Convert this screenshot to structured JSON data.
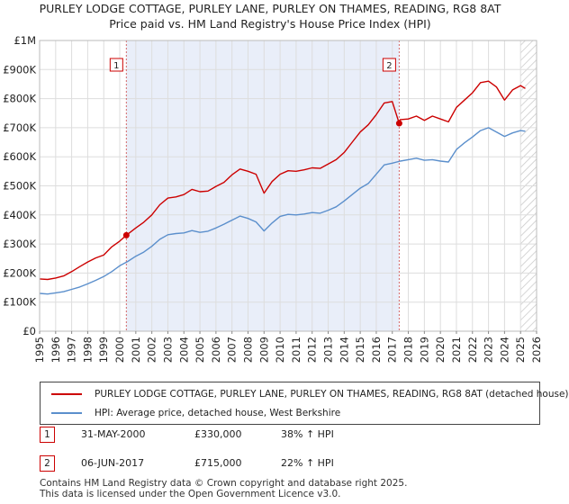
{
  "chart_data": {
    "type": "line",
    "title": "PURLEY LODGE COTTAGE, PURLEY LANE, PURLEY ON THAMES, READING, RG8 8AT",
    "subtitle": "Price paid vs. HM Land Registry's House Price Index (HPI)",
    "xlabel": "",
    "ylabel": "",
    "xlim": [
      1995,
      2026
    ],
    "ylim": [
      0,
      1000000
    ],
    "x_ticks": [
      "1995",
      "1996",
      "1997",
      "1998",
      "1999",
      "2000",
      "2001",
      "2002",
      "2003",
      "2004",
      "2005",
      "2006",
      "2007",
      "2008",
      "2009",
      "2010",
      "2011",
      "2012",
      "2013",
      "2014",
      "2015",
      "2016",
      "2017",
      "2018",
      "2019",
      "2020",
      "2021",
      "2022",
      "2023",
      "2024",
      "2025",
      "2026"
    ],
    "y_ticks": [
      {
        "value": 0,
        "label": "£0"
      },
      {
        "value": 100000,
        "label": "£100K"
      },
      {
        "value": 200000,
        "label": "£200K"
      },
      {
        "value": 300000,
        "label": "£300K"
      },
      {
        "value": 400000,
        "label": "£400K"
      },
      {
        "value": 500000,
        "label": "£500K"
      },
      {
        "value": 600000,
        "label": "£600K"
      },
      {
        "value": 700000,
        "label": "£700K"
      },
      {
        "value": 800000,
        "label": "£800K"
      },
      {
        "value": 900000,
        "label": "£900K"
      },
      {
        "value": 1000000,
        "label": "£1M"
      }
    ],
    "shaded_period": [
      2000.41,
      2017.43
    ],
    "future_hatch_from": 2025.0,
    "series": [
      {
        "name": "PURLEY LODGE COTTAGE, PURLEY LANE, PURLEY ON THAMES, READING, RG8 8AT (detached house)",
        "color": "#cc0000",
        "x": [
          1995.0,
          1995.5,
          1996.0,
          1996.5,
          1997.0,
          1997.5,
          1998.0,
          1998.5,
          1999.0,
          1999.5,
          2000.0,
          2000.41,
          2001.0,
          2001.5,
          2002.0,
          2002.5,
          2003.0,
          2003.5,
          2004.0,
          2004.5,
          2005.0,
          2005.5,
          2006.0,
          2006.5,
          2007.0,
          2007.5,
          2008.0,
          2008.5,
          2009.0,
          2009.5,
          2010.0,
          2010.5,
          2011.0,
          2011.5,
          2012.0,
          2012.5,
          2013.0,
          2013.5,
          2014.0,
          2014.5,
          2015.0,
          2015.5,
          2016.0,
          2016.5,
          2017.0,
          2017.43,
          2017.5,
          2018.0,
          2018.5,
          2019.0,
          2019.5,
          2020.0,
          2020.5,
          2021.0,
          2021.5,
          2022.0,
          2022.5,
          2023.0,
          2023.5,
          2024.0,
          2024.5,
          2025.0,
          2025.3
        ],
        "values": [
          180000,
          178000,
          183000,
          190000,
          205000,
          222000,
          238000,
          252000,
          262000,
          290000,
          310000,
          330000,
          355000,
          375000,
          400000,
          435000,
          458000,
          462000,
          470000,
          488000,
          480000,
          482000,
          498000,
          512000,
          538000,
          558000,
          550000,
          540000,
          475000,
          515000,
          540000,
          552000,
          550000,
          555000,
          562000,
          560000,
          575000,
          590000,
          615000,
          650000,
          685000,
          710000,
          745000,
          785000,
          790000,
          715000,
          728000,
          730000,
          740000,
          725000,
          740000,
          730000,
          720000,
          770000,
          795000,
          820000,
          855000,
          860000,
          840000,
          795000,
          830000,
          845000,
          835000
        ]
      },
      {
        "name": "HPI: Average price, detached house, West Berkshire",
        "color": "#5b8fcc",
        "x": [
          1995.0,
          1995.5,
          1996.0,
          1996.5,
          1997.0,
          1997.5,
          1998.0,
          1998.5,
          1999.0,
          1999.5,
          2000.0,
          2000.5,
          2001.0,
          2001.5,
          2002.0,
          2002.5,
          2003.0,
          2003.5,
          2004.0,
          2004.5,
          2005.0,
          2005.5,
          2006.0,
          2006.5,
          2007.0,
          2007.5,
          2008.0,
          2008.5,
          2009.0,
          2009.5,
          2010.0,
          2010.5,
          2011.0,
          2011.5,
          2012.0,
          2012.5,
          2013.0,
          2013.5,
          2014.0,
          2014.5,
          2015.0,
          2015.5,
          2016.0,
          2016.5,
          2017.0,
          2017.5,
          2018.0,
          2018.5,
          2019.0,
          2019.5,
          2020.0,
          2020.5,
          2021.0,
          2021.5,
          2022.0,
          2022.5,
          2023.0,
          2023.5,
          2024.0,
          2024.5,
          2025.0,
          2025.3
        ],
        "values": [
          130000,
          128000,
          132000,
          136000,
          144000,
          152000,
          163000,
          175000,
          188000,
          205000,
          225000,
          240000,
          258000,
          272000,
          292000,
          316000,
          332000,
          336000,
          338000,
          346000,
          340000,
          344000,
          355000,
          368000,
          382000,
          396000,
          388000,
          376000,
          345000,
          372000,
          395000,
          402000,
          400000,
          403000,
          408000,
          406000,
          416000,
          428000,
          448000,
          470000,
          492000,
          508000,
          540000,
          572000,
          578000,
          585000,
          590000,
          595000,
          588000,
          590000,
          585000,
          582000,
          625000,
          648000,
          668000,
          690000,
          700000,
          685000,
          670000,
          682000,
          690000,
          688000
        ]
      }
    ],
    "annotations": [
      {
        "label": "1",
        "x": 2000.41,
        "value": 330000
      },
      {
        "label": "2",
        "x": 2017.43,
        "value": 715000
      }
    ]
  },
  "legend": {
    "property_label": "PURLEY LODGE COTTAGE, PURLEY LANE, PURLEY ON THAMES, READING, RG8 8AT (detached house)",
    "hpi_label": "HPI: Average price, detached house, West Berkshire"
  },
  "transactions": [
    {
      "num": "1",
      "date": "31-MAY-2000",
      "price": "£330,000",
      "delta": "38% ↑ HPI"
    },
    {
      "num": "2",
      "date": "06-JUN-2017",
      "price": "£715,000",
      "delta": "22% ↑ HPI"
    }
  ],
  "footer": {
    "line1": "Contains HM Land Registry data © Crown copyright and database right 2025.",
    "line2": "This data is licensed under the Open Government Licence v3.0."
  }
}
